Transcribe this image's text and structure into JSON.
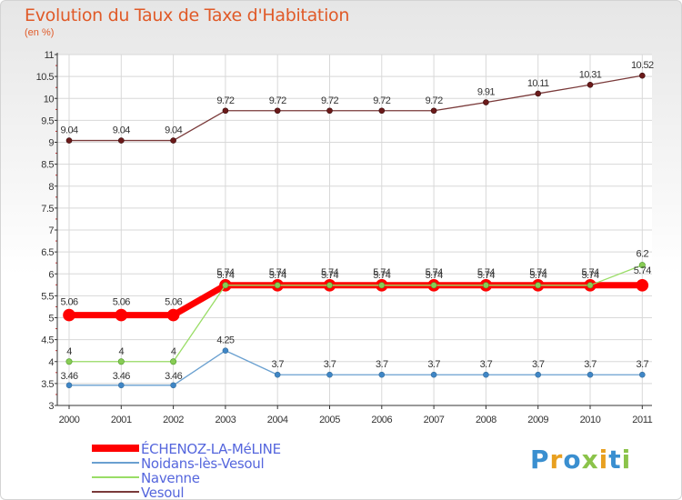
{
  "chart_data": {
    "type": "line",
    "title": "Evolution du Taux de Taxe d'Habitation",
    "subtitle": "(en %)",
    "x": [
      "2000",
      "2001",
      "2002",
      "2003",
      "2004",
      "2005",
      "2006",
      "2007",
      "2008",
      "2009",
      "2010",
      "2011"
    ],
    "ylim": [
      3,
      11
    ],
    "y_ticks": [
      "3",
      "3.5",
      "4",
      "4.5",
      "5",
      "5.5",
      "6",
      "6.5",
      "7",
      "7.5",
      "8",
      "8.5",
      "9",
      "9.5",
      "10",
      "10.5",
      "11"
    ],
    "series": [
      {
        "name": "ÉCHENOZ-LA-MéLINE",
        "color": "#ff0000",
        "marker_fill": "#ff0000",
        "values": [
          5.06,
          5.06,
          5.06,
          5.74,
          5.74,
          5.74,
          5.74,
          5.74,
          5.74,
          5.74,
          5.74,
          5.74
        ],
        "labels": [
          "5.06",
          "5.06",
          "5.06",
          "5.74",
          "5.74",
          "5.74",
          "5.74",
          "5.74",
          "5.74",
          "5.74",
          "5.74",
          "5.74"
        ]
      },
      {
        "name": "Noidans-lès-Vesoul",
        "color": "#6aa0d0",
        "marker_fill": "#3f86c6",
        "values": [
          3.46,
          3.46,
          3.46,
          4.25,
          3.7,
          3.7,
          3.7,
          3.7,
          3.7,
          3.7,
          3.7,
          3.7
        ],
        "labels": [
          "3.46",
          "3.46",
          "3.46",
          "4.25",
          "3.7",
          "3.7",
          "3.7",
          "3.7",
          "3.7",
          "3.7",
          "3.7",
          "3.7"
        ]
      },
      {
        "name": "Navenne",
        "color": "#99dd66",
        "marker_fill": "#88cc55",
        "values": [
          4,
          4,
          4,
          5.74,
          5.74,
          5.74,
          5.74,
          5.74,
          5.74,
          5.74,
          5.74,
          6.2
        ],
        "labels": [
          "4",
          "4",
          "4",
          "5.74",
          "5.74",
          "5.74",
          "5.74",
          "5.74",
          "5.74",
          "5.74",
          "5.74",
          "6.2"
        ]
      },
      {
        "name": "Vesoul",
        "color": "#7a3a3a",
        "marker_fill": "#6b1a1a",
        "values": [
          9.04,
          9.04,
          9.04,
          9.72,
          9.72,
          9.72,
          9.72,
          9.72,
          9.91,
          10.11,
          10.31,
          10.52
        ],
        "labels": [
          "9.04",
          "9.04",
          "9.04",
          "9.72",
          "9.72",
          "9.72",
          "9.72",
          "9.72",
          "9.91",
          "10.11",
          "10.31",
          "10.52"
        ]
      }
    ]
  },
  "brand": {
    "letters": [
      "P",
      "r",
      "o",
      "x",
      "i",
      "t",
      "i"
    ],
    "colors": [
      "#3a8fd0",
      "#e8a020",
      "#3a8fd0",
      "#8bc34a",
      "#e8a020",
      "#3a8fd0",
      "#8bc34a"
    ]
  }
}
